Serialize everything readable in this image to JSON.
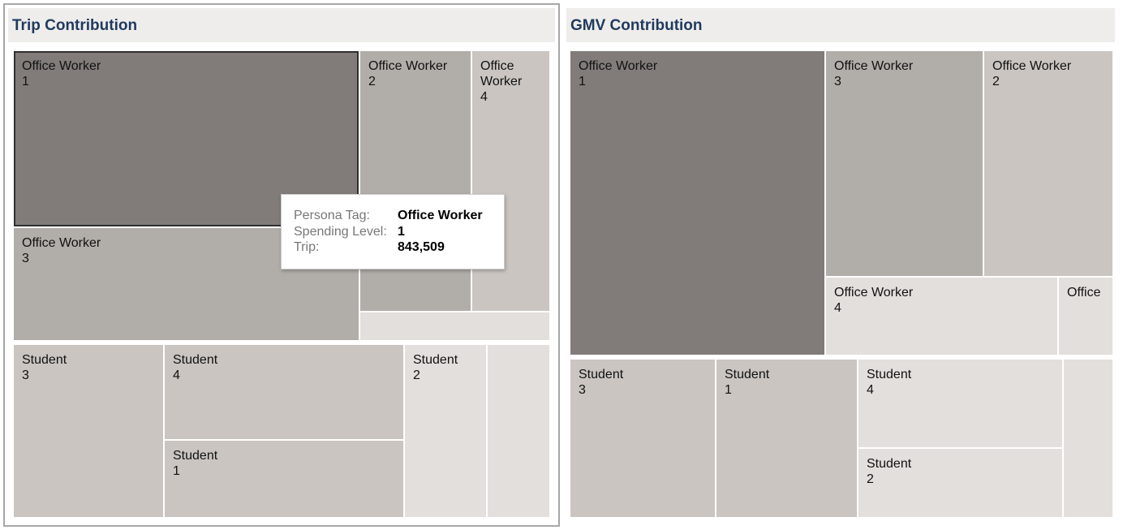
{
  "panels": {
    "trip": {
      "title": "Trip Contribution"
    },
    "gmv": {
      "title": "GMV Contribution"
    }
  },
  "colors": {
    "darkest": "#817c79",
    "dark": "#b1ada9",
    "medium": "#cac5c1",
    "light": "#e3dfdc"
  },
  "chart_data": [
    {
      "type": "treemap",
      "title": "Trip Contribution",
      "groups": [
        {
          "name": "Office Worker",
          "tiles": [
            {
              "persona": "Office Worker",
              "level": "1",
              "label": [
                "Office Worker",
                "1"
              ],
              "shade": "darkest"
            },
            {
              "persona": "Office Worker",
              "level": "3",
              "label": [
                "Office Worker",
                "3"
              ],
              "shade": "dark"
            },
            {
              "persona": "Office Worker",
              "level": "2",
              "label": [
                "Office Worker",
                "2"
              ],
              "shade": "dark"
            },
            {
              "persona": "Office Worker",
              "level": "4",
              "label": [
                "Office",
                "Worker",
                "4"
              ],
              "shade": "medium"
            },
            {
              "persona": "Office Worker",
              "level": "",
              "label": [],
              "shade": "light"
            }
          ]
        },
        {
          "name": "Student",
          "tiles": [
            {
              "persona": "Student",
              "level": "3",
              "label": [
                "Student",
                "3"
              ],
              "shade": "medium"
            },
            {
              "persona": "Student",
              "level": "4",
              "label": [
                "Student",
                "4"
              ],
              "shade": "medium"
            },
            {
              "persona": "Student",
              "level": "1",
              "label": [
                "Student",
                "1"
              ],
              "shade": "medium"
            },
            {
              "persona": "Student",
              "level": "2",
              "label": [
                "Student",
                "2"
              ],
              "shade": "light"
            },
            {
              "persona": "Student",
              "level": "",
              "label": [],
              "shade": "light"
            }
          ]
        }
      ],
      "tooltip": {
        "rows": [
          {
            "key": "Persona Tag:",
            "value": "Office Worker"
          },
          {
            "key": "Spending Level:",
            "value": "1"
          },
          {
            "key": "Trip:",
            "value": "843,509"
          }
        ]
      }
    },
    {
      "type": "treemap",
      "title": "GMV Contribution",
      "groups": [
        {
          "name": "Office Worker",
          "tiles": [
            {
              "persona": "Office Worker",
              "level": "1",
              "label": [
                "Office Worker",
                "1"
              ],
              "shade": "darkest"
            },
            {
              "persona": "Office Worker",
              "level": "3",
              "label": [
                "Office Worker",
                "3"
              ],
              "shade": "dark"
            },
            {
              "persona": "Office Worker",
              "level": "2",
              "label": [
                "Office Worker",
                "2"
              ],
              "shade": "medium"
            },
            {
              "persona": "Office Worker",
              "level": "4",
              "label": [
                "Office Worker",
                "4"
              ],
              "shade": "light"
            },
            {
              "persona": "Office Worker",
              "level": "",
              "label": [
                "Office"
              ],
              "shade": "light"
            }
          ]
        },
        {
          "name": "Student",
          "tiles": [
            {
              "persona": "Student",
              "level": "3",
              "label": [
                "Student",
                "3"
              ],
              "shade": "medium"
            },
            {
              "persona": "Student",
              "level": "1",
              "label": [
                "Student",
                "1"
              ],
              "shade": "medium"
            },
            {
              "persona": "Student",
              "level": "4",
              "label": [
                "Student",
                "4"
              ],
              "shade": "light"
            },
            {
              "persona": "Student",
              "level": "2",
              "label": [
                "Student",
                "2"
              ],
              "shade": "light"
            },
            {
              "persona": "Student",
              "level": "",
              "label": [],
              "shade": "light"
            }
          ]
        }
      ]
    }
  ]
}
